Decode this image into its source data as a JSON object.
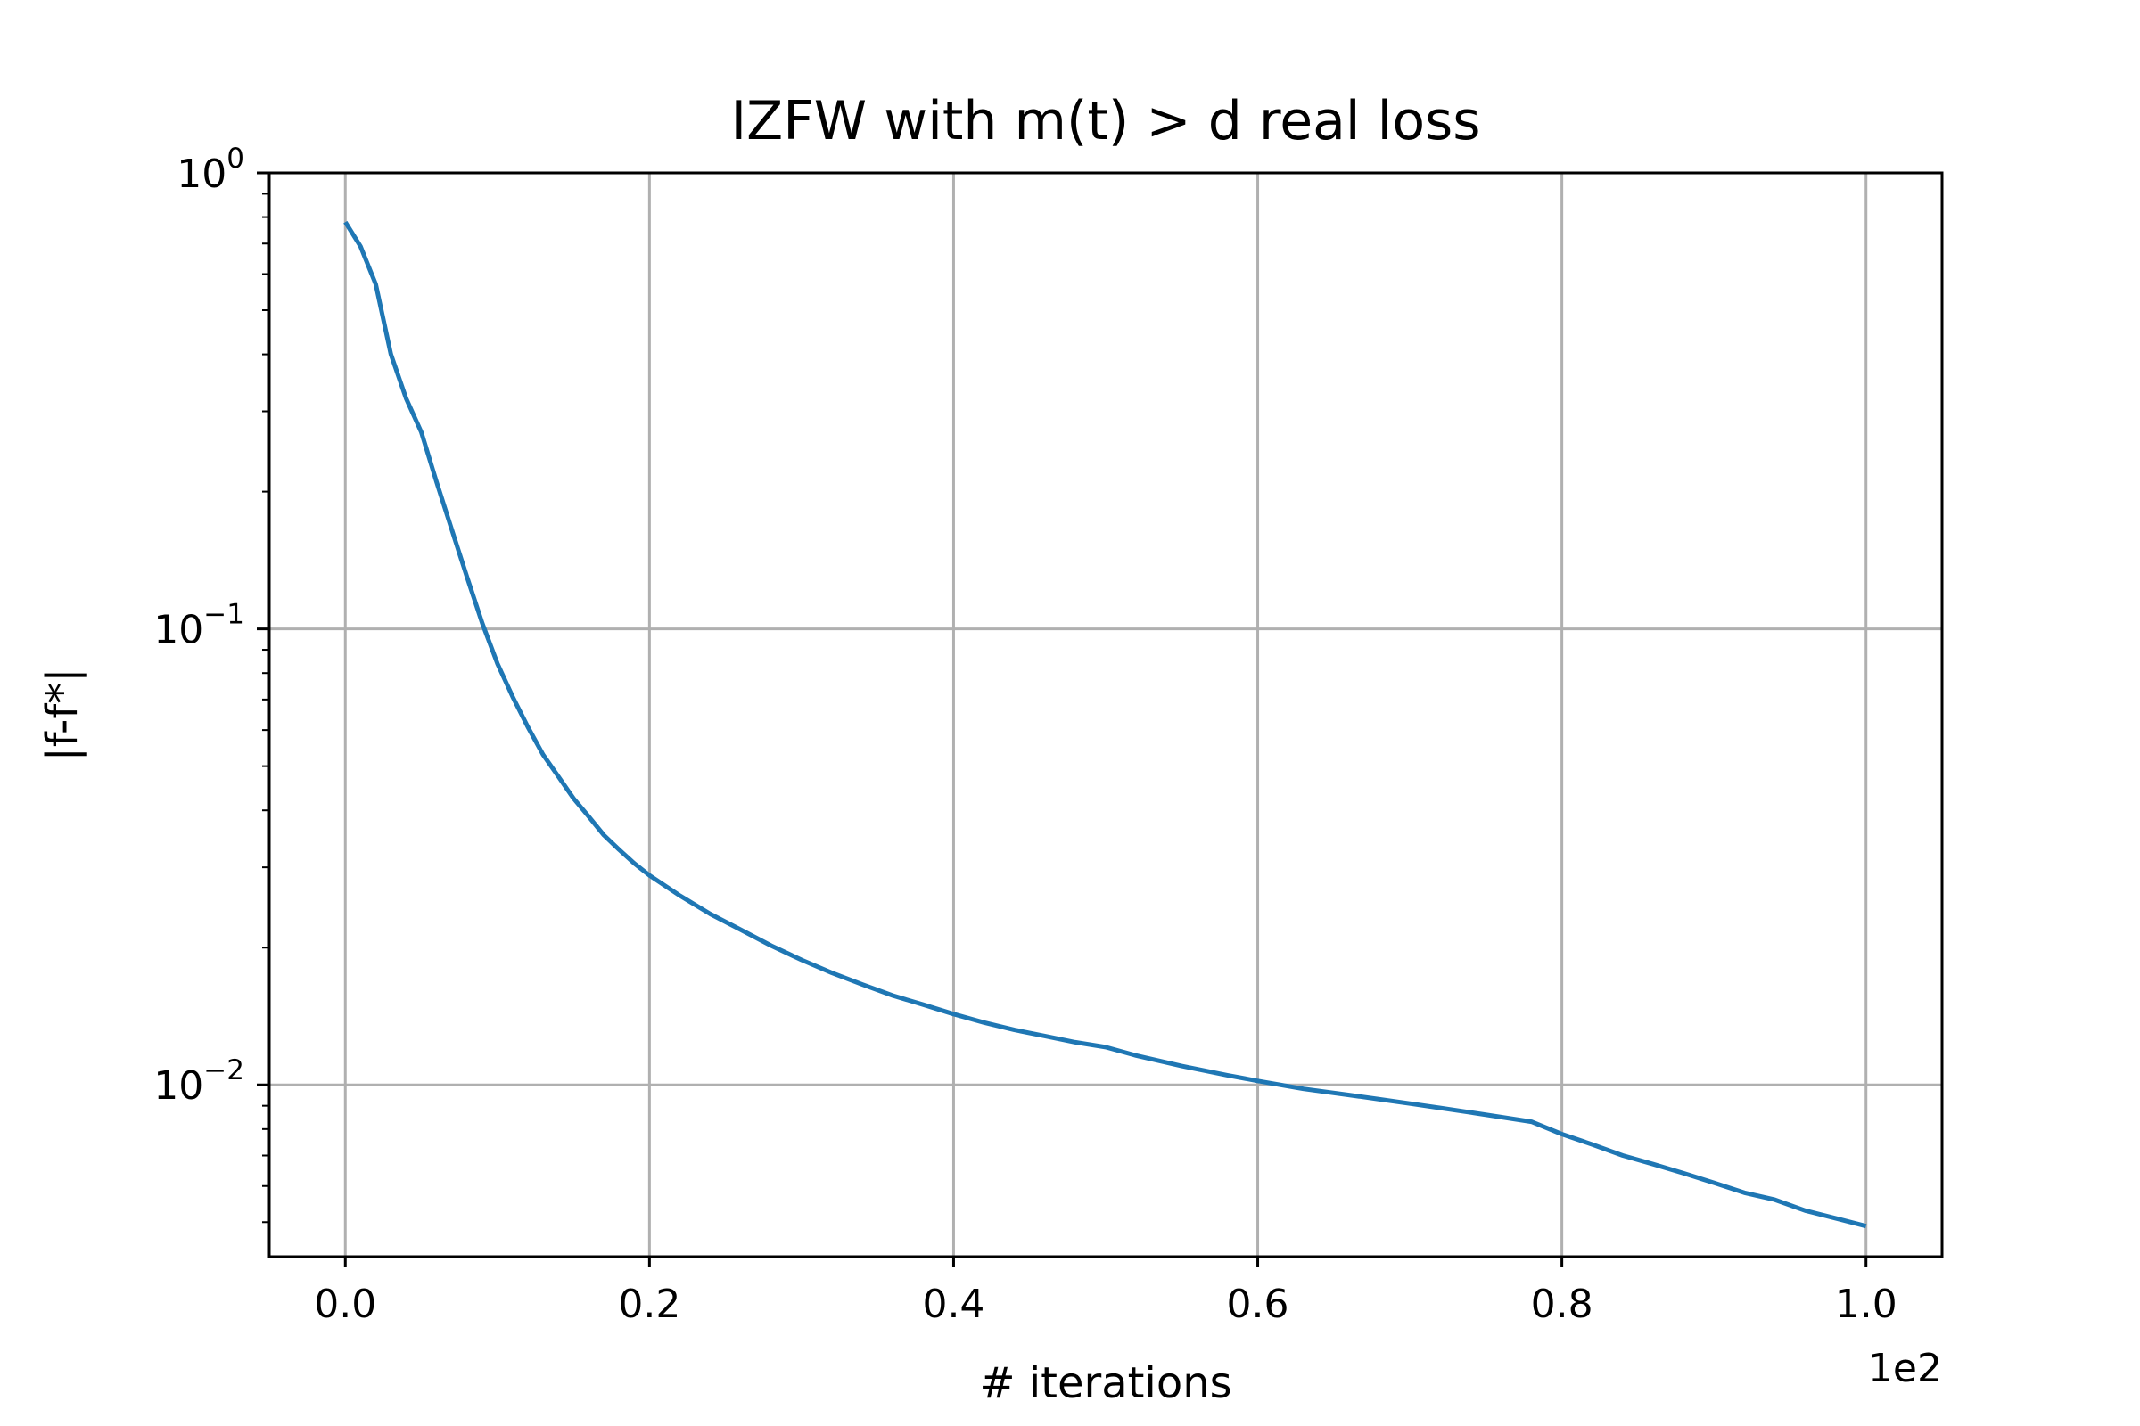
{
  "chart_data": {
    "type": "line",
    "title": "IZFW with m(t) > d real loss",
    "xlabel": "# iterations",
    "ylabel": "|f-f*|",
    "x_offset_label": "1e2",
    "xscale": "linear",
    "yscale": "log",
    "xlim": [
      -5,
      105
    ],
    "ylim": [
      0.0042,
      1.0
    ],
    "grid": true,
    "legend": "none",
    "line_color": "#1f77b4",
    "grid_color": "#b0b0b0",
    "x_ticks": [
      {
        "value": 0,
        "label": "0.0"
      },
      {
        "value": 20,
        "label": "0.2"
      },
      {
        "value": 40,
        "label": "0.4"
      },
      {
        "value": 60,
        "label": "0.6"
      },
      {
        "value": 80,
        "label": "0.8"
      },
      {
        "value": 100,
        "label": "1.0"
      }
    ],
    "y_ticks": [
      {
        "value": 1.0,
        "base": "10",
        "exp": "0"
      },
      {
        "value": 0.1,
        "base": "10",
        "exp": "−1"
      },
      {
        "value": 0.01,
        "base": "10",
        "exp": "−2"
      }
    ],
    "series": [
      {
        "x": [
          0,
          1,
          2,
          3,
          4,
          5,
          6,
          7,
          8,
          9,
          10,
          11,
          12,
          13,
          14,
          15,
          16,
          17,
          18,
          19,
          20,
          22,
          24,
          26,
          28,
          30,
          32,
          34,
          36,
          38,
          40,
          42,
          44,
          46,
          48,
          50,
          52,
          55,
          58,
          60,
          63,
          66,
          68,
          70,
          72,
          74,
          76,
          78,
          80,
          82,
          84,
          86,
          88,
          90,
          92,
          94,
          96,
          98,
          100
        ],
        "y": [
          0.78,
          0.69,
          0.57,
          0.4,
          0.32,
          0.27,
          0.21,
          0.165,
          0.13,
          0.103,
          0.084,
          0.071,
          0.061,
          0.053,
          0.0475,
          0.0425,
          0.0388,
          0.0353,
          0.0328,
          0.0306,
          0.0288,
          0.026,
          0.0237,
          0.0219,
          0.0202,
          0.0188,
          0.0176,
          0.0166,
          0.0157,
          0.015,
          0.0143,
          0.0137,
          0.0132,
          0.0128,
          0.0124,
          0.0121,
          0.0116,
          0.011,
          0.0105,
          0.0102,
          0.0098,
          0.0095,
          0.0093,
          0.0091,
          0.0089,
          0.0087,
          0.0085,
          0.0083,
          0.0078,
          0.0074,
          0.007,
          0.0067,
          0.0064,
          0.0061,
          0.0058,
          0.0056,
          0.0053,
          0.0051,
          0.0049
        ]
      }
    ]
  }
}
